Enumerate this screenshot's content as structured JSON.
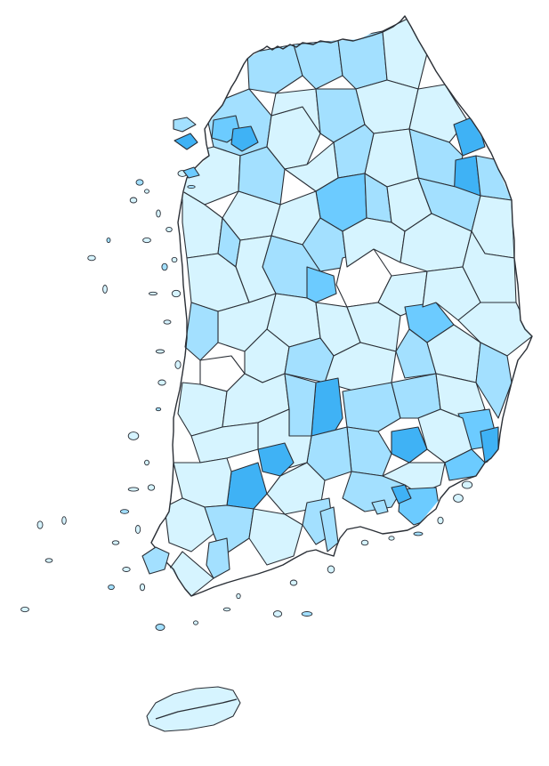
{
  "map": {
    "type": "choropleth",
    "palette": {
      "c0": "#ffffff",
      "c1": "#d6f4ff",
      "c2": "#a3e0ff",
      "c3": "#6ccbff",
      "c4": "#3fb2f5",
      "stroke": "#2a2f36"
    },
    "icons": [
      "choropleth-map"
    ]
  }
}
